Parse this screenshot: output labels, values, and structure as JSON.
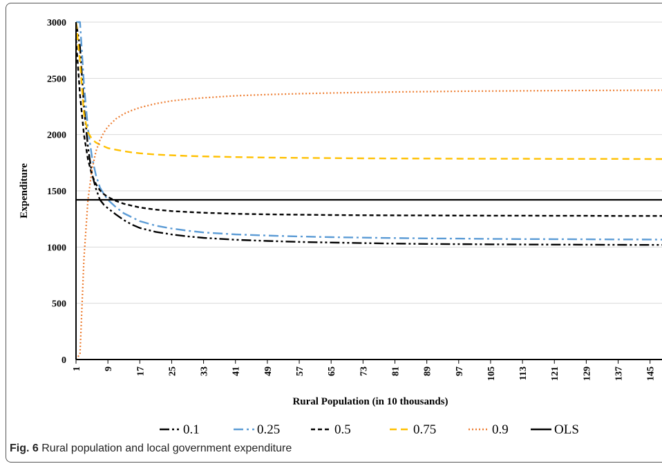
{
  "caption": {
    "label": "Fig. 6",
    "text": "Rural population and local government expenditure"
  },
  "chart_data": {
    "type": "line",
    "title": "",
    "xlabel": "Rural Population (in 10 thousands)",
    "ylabel": "Expenditure",
    "xlim": [
      1,
      148
    ],
    "ylim": [
      0,
      3000
    ],
    "x_ticks": [
      1,
      9,
      17,
      25,
      33,
      41,
      49,
      57,
      65,
      73,
      81,
      89,
      97,
      105,
      113,
      121,
      129,
      137,
      145
    ],
    "y_ticks": [
      0,
      500,
      1000,
      1500,
      2000,
      2500,
      3000
    ],
    "grid": "horizontal",
    "legend_position": "bottom",
    "x": [
      1,
      2,
      3,
      4,
      5,
      6,
      7,
      8,
      9,
      11,
      13,
      15,
      17,
      21,
      25,
      29,
      33,
      41,
      49,
      57,
      65,
      73,
      81,
      89,
      97,
      105,
      113,
      121,
      129,
      137,
      145,
      148
    ],
    "series": [
      {
        "name": "0.1",
        "color": "#000000",
        "dash": "long-dash-dot-dot",
        "values": [
          3000,
          2780,
          2250,
          1890,
          1650,
          1520,
          1420,
          1375,
          1345,
          1290,
          1240,
          1200,
          1170,
          1135,
          1112,
          1095,
          1082,
          1065,
          1054,
          1046,
          1040,
          1035,
          1031,
          1028,
          1026,
          1024,
          1023,
          1022,
          1021,
          1020,
          1019,
          1019
        ]
      },
      {
        "name": "0.25",
        "color": "#5b9bd5",
        "dash": "long-dash-dot",
        "values": [
          3000,
          3000,
          2450,
          2050,
          1800,
          1640,
          1530,
          1470,
          1420,
          1355,
          1300,
          1265,
          1230,
          1190,
          1165,
          1145,
          1130,
          1113,
          1102,
          1094,
          1088,
          1084,
          1080,
          1077,
          1075,
          1073,
          1071,
          1070,
          1069,
          1068,
          1067,
          1066
        ]
      },
      {
        "name": "0.5",
        "color": "#000000",
        "dash": "short-dash",
        "values": [
          2850,
          2350,
          2000,
          1780,
          1640,
          1560,
          1505,
          1470,
          1445,
          1410,
          1385,
          1368,
          1352,
          1333,
          1320,
          1312,
          1305,
          1296,
          1291,
          1288,
          1285,
          1283,
          1282,
          1281,
          1280,
          1279,
          1279,
          1278,
          1278,
          1277,
          1277,
          1277
        ]
      },
      {
        "name": "0.75",
        "color": "#ffc000",
        "dash": "dash",
        "values": [
          3000,
          2650,
          2180,
          2020,
          1960,
          1930,
          1910,
          1895,
          1880,
          1865,
          1852,
          1842,
          1834,
          1823,
          1816,
          1810,
          1806,
          1800,
          1796,
          1793,
          1791,
          1789,
          1788,
          1787,
          1786,
          1785,
          1785,
          1784,
          1784,
          1784,
          1783,
          1783
        ]
      },
      {
        "name": "0.9",
        "color": "#ed7d31",
        "dash": "dot",
        "values": [
          0,
          50,
          900,
          1420,
          1690,
          1850,
          1950,
          2020,
          2070,
          2140,
          2185,
          2215,
          2240,
          2275,
          2300,
          2315,
          2327,
          2345,
          2356,
          2364,
          2370,
          2375,
          2379,
          2382,
          2385,
          2387,
          2389,
          2391,
          2392,
          2393,
          2394,
          2395
        ]
      },
      {
        "name": "OLS",
        "color": "#000000",
        "dash": "solid",
        "values": [
          1420,
          1420,
          1420,
          1420,
          1420,
          1420,
          1420,
          1420,
          1420,
          1420,
          1420,
          1420,
          1420,
          1420,
          1420,
          1420,
          1420,
          1420,
          1420,
          1420,
          1420,
          1420,
          1420,
          1420,
          1420,
          1420,
          1420,
          1420,
          1420,
          1420,
          1420,
          1420
        ]
      }
    ]
  }
}
